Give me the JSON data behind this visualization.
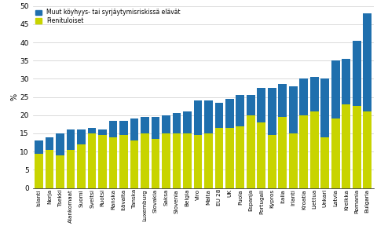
{
  "countries": [
    "Islanti",
    "Norja",
    "Tsekki",
    "Alankomaat",
    "Suomi",
    "Sveitsi",
    "Ruotsi",
    "Ranska",
    "Itävalta",
    "Tanska",
    "Luxemburg",
    "Slovakia",
    "Saksa",
    "Slovenia",
    "Belgia",
    "Viro",
    "Malta",
    "EU 28",
    "UK",
    "Puola",
    "Espanja",
    "Portugali",
    "Kypros",
    "Italia",
    "Irlanti",
    "Kroatia",
    "Liettua",
    "Unkari",
    "Latvia",
    "Kreikka",
    "Romania",
    "Bulgaria"
  ],
  "pienituloiset": [
    9.5,
    10.5,
    9.0,
    10.5,
    12.0,
    15.0,
    14.5,
    14.0,
    14.5,
    13.0,
    15.0,
    13.5,
    15.0,
    15.0,
    15.0,
    14.5,
    15.0,
    16.5,
    16.5,
    17.0,
    20.0,
    18.0,
    14.5,
    19.5,
    15.0,
    20.0,
    21.0,
    14.0,
    19.0,
    23.0,
    22.5,
    21.0
  ],
  "muut": [
    3.5,
    3.5,
    6.0,
    5.5,
    4.0,
    1.5,
    1.5,
    4.5,
    4.0,
    6.0,
    4.5,
    6.0,
    5.0,
    5.5,
    6.0,
    9.5,
    9.0,
    7.0,
    8.0,
    8.5,
    5.5,
    9.5,
    13.0,
    9.0,
    13.0,
    10.0,
    9.5,
    16.0,
    16.0,
    12.5,
    18.0,
    27.0
  ],
  "color_pienituloiset": "#c8d400",
  "color_muut": "#1f6fad",
  "ylabel": "%",
  "ylim": [
    0,
    50
  ],
  "yticks": [
    0,
    5,
    10,
    15,
    20,
    25,
    30,
    35,
    40,
    45,
    50
  ],
  "legend_muut": "Muut köyhyys- tai syrjäytymisriskissä elävät",
  "legend_pienituloiset": "Pienituloiset",
  "background_color": "#ffffff",
  "grid_color": "#cccccc"
}
